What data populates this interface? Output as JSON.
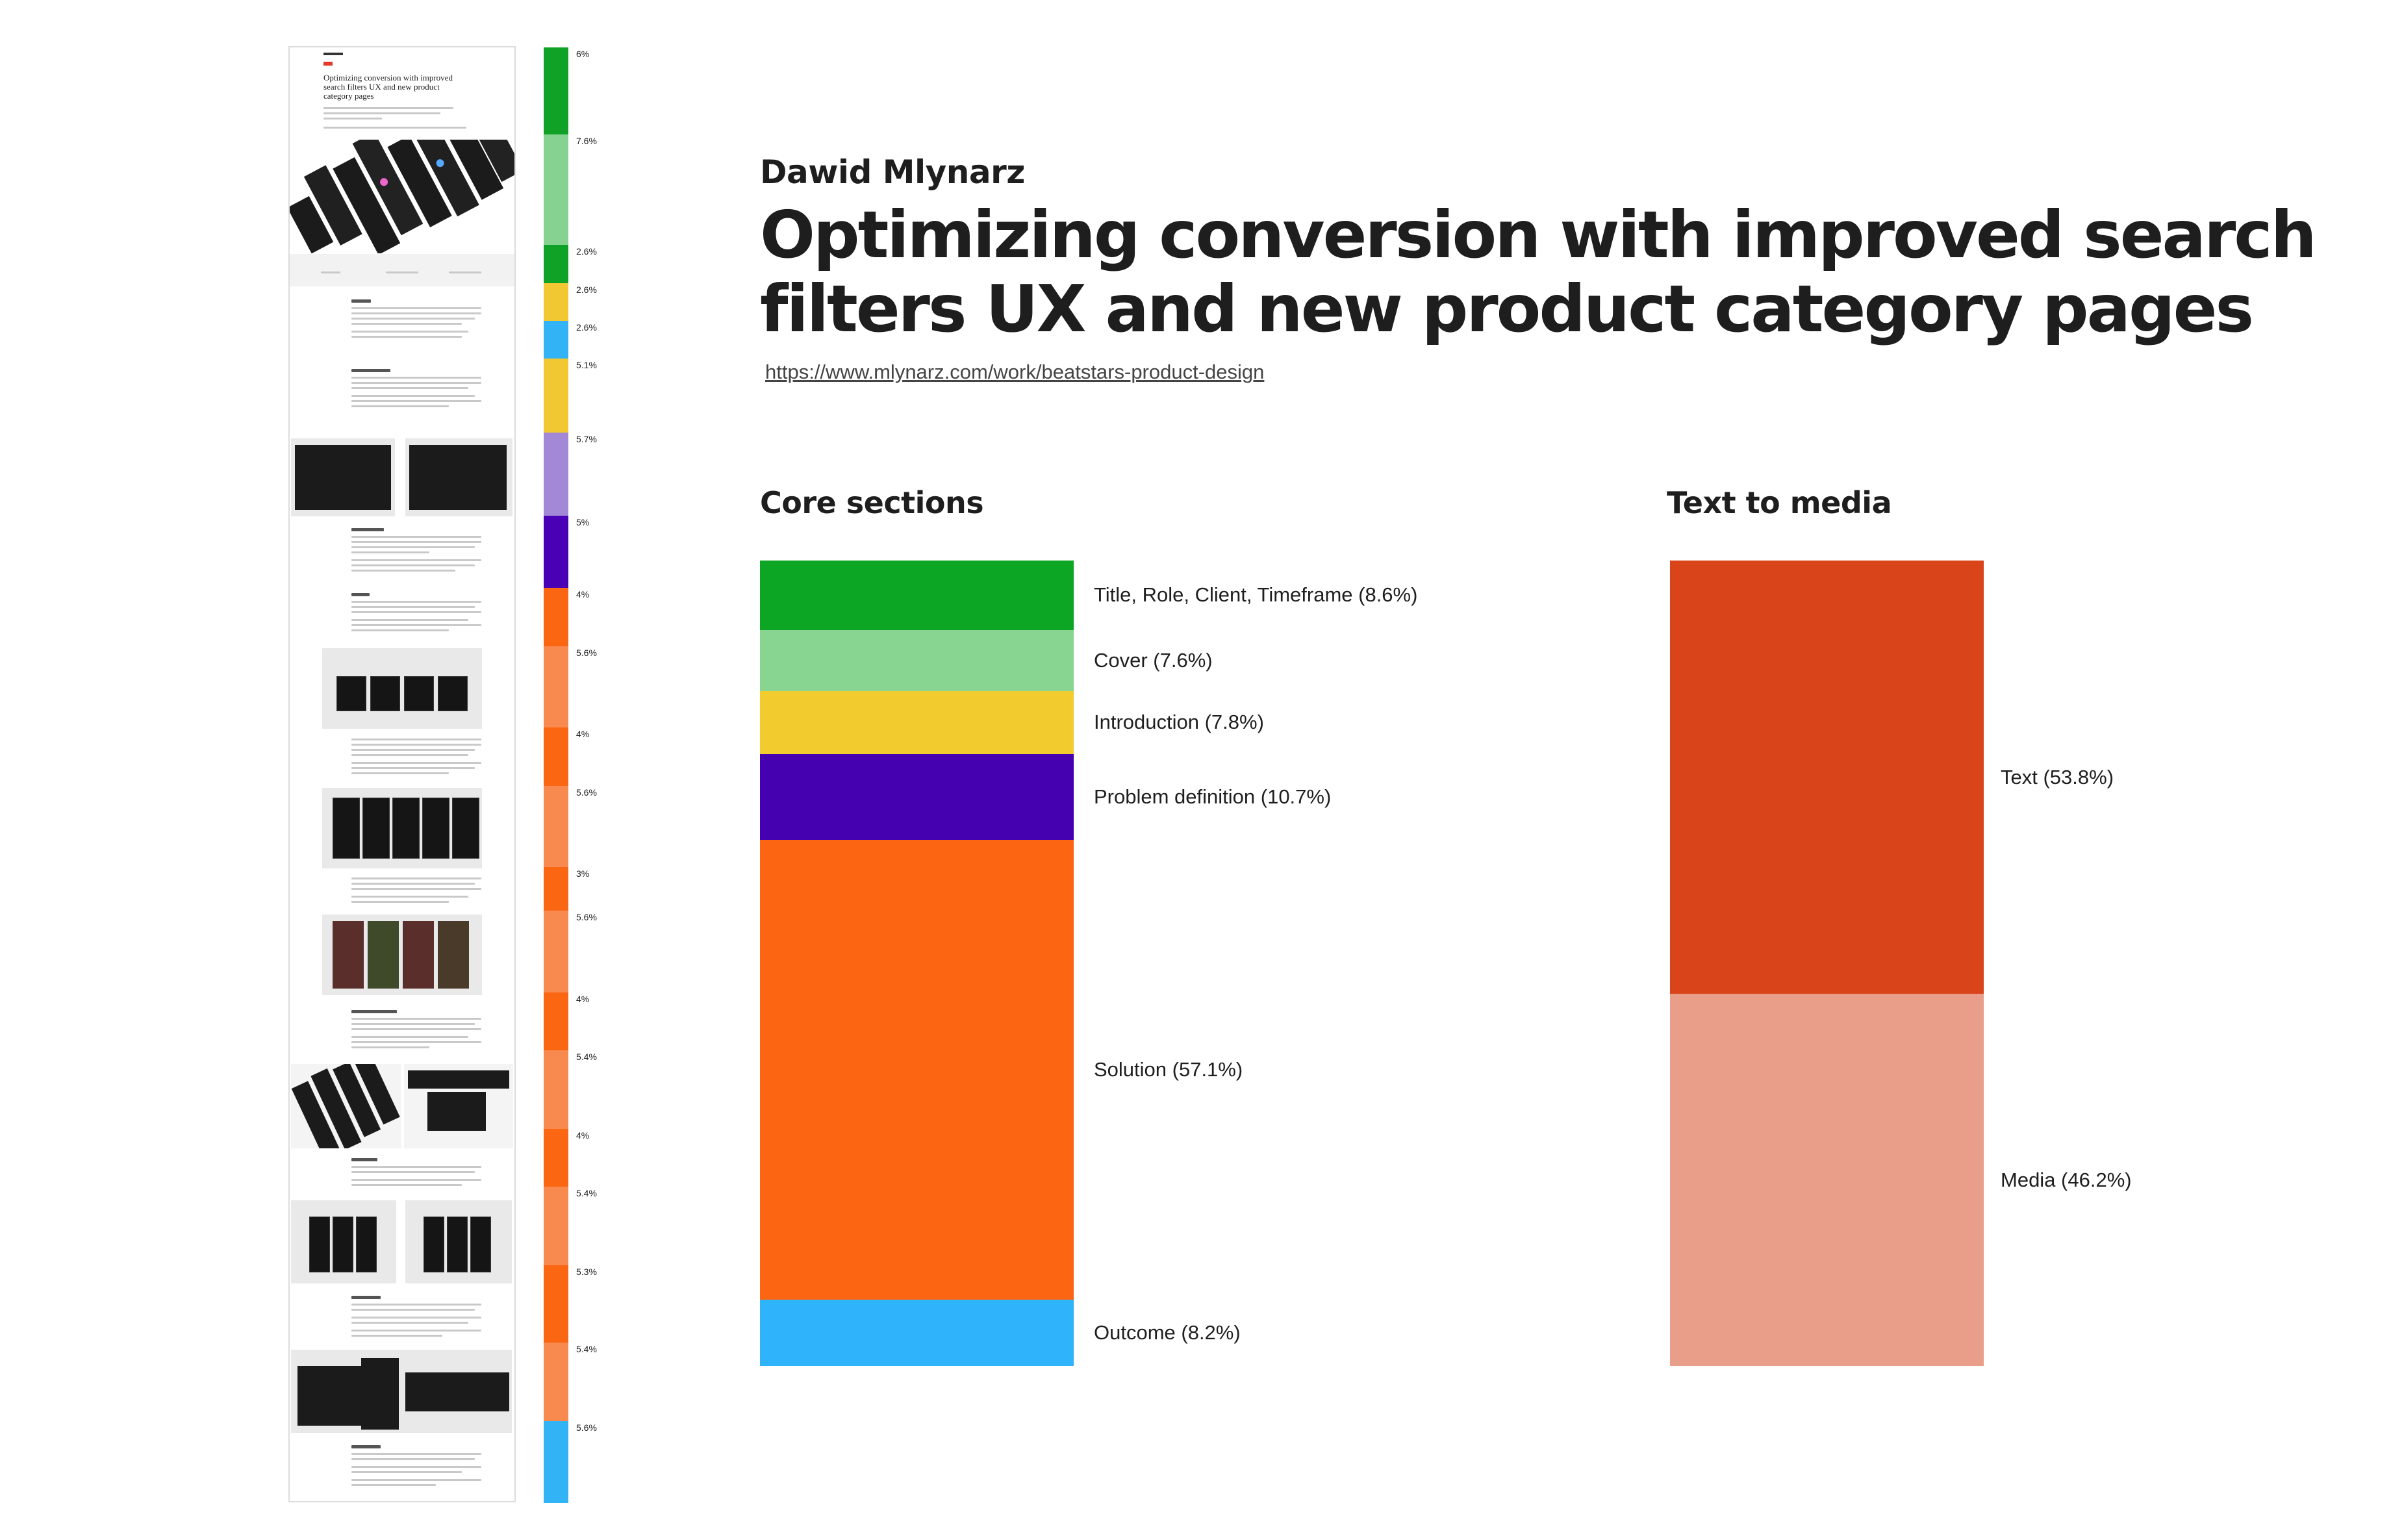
{
  "header": {
    "author": "Dawid Mlynarz",
    "title": "Optimizing conversion with improved search filters UX and new product category pages",
    "url": "https://www.mlynarz.com/work/beatstars-product-design"
  },
  "thumbnail": {
    "title": "Optimizing conversion with improved search filters UX and new product category pages"
  },
  "strip": {
    "segments": [
      {
        "color": "#0fa226",
        "label": "6%"
      },
      {
        "color": "#86d391",
        "label": "7.6%"
      },
      {
        "color": "#0fa226",
        "label": "2.6%"
      },
      {
        "color": "#f2c832",
        "label": "2.6%"
      },
      {
        "color": "#31b3f5",
        "label": "2.6%"
      },
      {
        "color": "#f2c832",
        "label": "5.1%"
      },
      {
        "color": "#a488d8",
        "label": "5.7%"
      },
      {
        "color": "#4a00b4",
        "label": "5%"
      },
      {
        "color": "#fa6611",
        "label": "4%"
      },
      {
        "color": "#f88a4f",
        "label": "5.6%"
      },
      {
        "color": "#fa6611",
        "label": "4%"
      },
      {
        "color": "#f88a4f",
        "label": "5.6%"
      },
      {
        "color": "#fa6611",
        "label": "3%"
      },
      {
        "color": "#f88a4f",
        "label": "5.6%"
      },
      {
        "color": "#fa6611",
        "label": "4%"
      },
      {
        "color": "#f88a4f",
        "label": "5.4%"
      },
      {
        "color": "#fa6611",
        "label": "4%"
      },
      {
        "color": "#f88a4f",
        "label": "5.4%"
      },
      {
        "color": "#fa6611",
        "label": "5.3%"
      },
      {
        "color": "#f88a4f",
        "label": "5.4%"
      },
      {
        "color": "#31b3f5",
        "label": "5.6%"
      }
    ]
  },
  "chart_data": [
    {
      "type": "bar",
      "stacked": true,
      "title": "Core sections",
      "series": [
        {
          "name": "Title, Role, Client, Timeframe",
          "value": 8.6,
          "label": "Title, Role, Client, Timeframe (8.6%)",
          "color": "#0da524"
        },
        {
          "name": "Cover",
          "value": 7.6,
          "label": "Cover (7.6%)",
          "color": "#87d591"
        },
        {
          "name": "Introduction",
          "value": 7.8,
          "label": "Introduction (7.8%)",
          "color": "#f2cb2f"
        },
        {
          "name": "Problem definition",
          "value": 10.7,
          "label": "Problem definition (10.7%)",
          "color": "#4500b0"
        },
        {
          "name": "Solution",
          "value": 57.1,
          "label": "Solution (57.1%)",
          "color": "#fc6511"
        },
        {
          "name": "Outcome",
          "value": 8.2,
          "label": "Outcome (8.2%)",
          "color": "#2fb3fa"
        }
      ]
    },
    {
      "type": "bar",
      "stacked": true,
      "title": "Text to media",
      "series": [
        {
          "name": "Text",
          "value": 53.8,
          "label": "Text (53.8%)",
          "color": "#d9441b"
        },
        {
          "name": "Media",
          "value": 46.2,
          "label": "Media (46.2%)",
          "color": "#e99e89"
        }
      ]
    }
  ]
}
